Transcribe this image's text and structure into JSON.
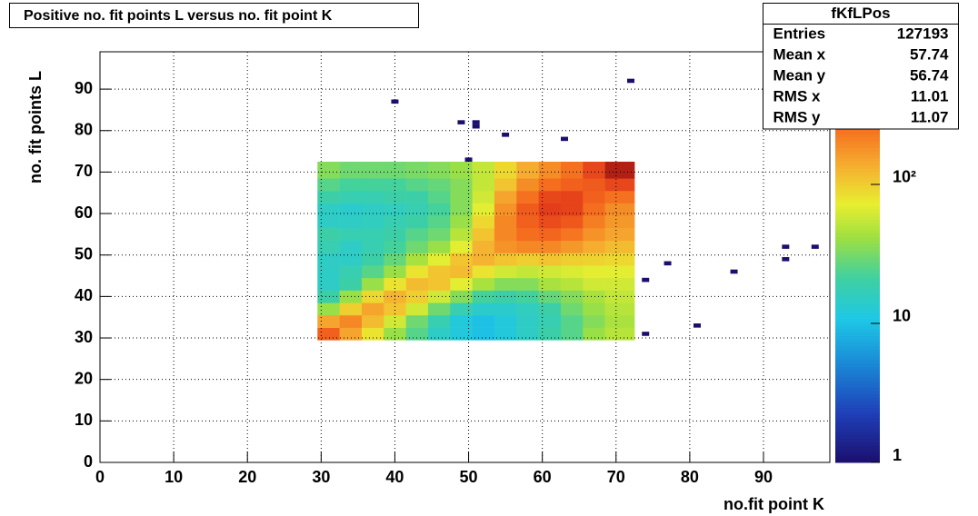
{
  "chart_data": {
    "type": "heatmap",
    "title": "Positive no. fit points L versus no. fit point K",
    "x_label": "no.fit point K",
    "y_label": "no. fit points  L",
    "xlim": [
      0,
      99
    ],
    "ylim": [
      0,
      99
    ],
    "xticks": [
      0,
      10,
      20,
      30,
      40,
      50,
      60,
      70,
      80,
      90
    ],
    "yticks": [
      0,
      10,
      20,
      30,
      40,
      50,
      60,
      70,
      80,
      90
    ],
    "grid": true,
    "log_z": true,
    "zlim": [
      1,
      900
    ],
    "zticks": [
      1,
      10,
      {
        "value": 100,
        "label": "10²"
      }
    ],
    "xbins": [
      29.5,
      32.5,
      35.5,
      38.5,
      41.5,
      44.5,
      47.5,
      50.5,
      53.5,
      56.5,
      59.5,
      62.5,
      65.5,
      68.5,
      72.5
    ],
    "ybins": [
      29.5,
      32.5,
      35.5,
      38.5,
      41.5,
      44.5,
      47.5,
      50.5,
      53.5,
      56.5,
      59.5,
      62.5,
      65.5,
      68.5,
      72.5
    ],
    "values": [
      [
        300,
        150,
        80,
        40,
        25,
        15,
        12,
        10,
        12,
        15,
        20,
        25,
        40,
        50
      ],
      [
        150,
        200,
        120,
        60,
        30,
        18,
        12,
        10,
        12,
        15,
        18,
        25,
        35,
        45
      ],
      [
        40,
        100,
        150,
        110,
        60,
        30,
        18,
        14,
        14,
        16,
        20,
        30,
        40,
        50
      ],
      [
        20,
        40,
        90,
        130,
        100,
        60,
        35,
        22,
        20,
        22,
        28,
        35,
        45,
        55
      ],
      [
        15,
        20,
        40,
        80,
        120,
        110,
        70,
        45,
        35,
        35,
        45,
        50,
        60,
        60
      ],
      [
        15,
        18,
        25,
        40,
        80,
        110,
        120,
        80,
        60,
        55,
        60,
        65,
        70,
        70
      ],
      [
        15,
        15,
        20,
        28,
        45,
        70,
        110,
        130,
        110,
        100,
        110,
        100,
        95,
        90
      ],
      [
        18,
        15,
        18,
        22,
        30,
        40,
        70,
        130,
        180,
        200,
        200,
        170,
        140,
        120
      ],
      [
        20,
        18,
        18,
        20,
        25,
        30,
        50,
        110,
        200,
        260,
        280,
        240,
        180,
        150
      ],
      [
        15,
        15,
        16,
        18,
        20,
        25,
        40,
        90,
        200,
        300,
        380,
        330,
        220,
        170
      ],
      [
        15,
        14,
        15,
        16,
        18,
        22,
        35,
        70,
        180,
        320,
        450,
        420,
        260,
        190
      ],
      [
        20,
        18,
        18,
        20,
        20,
        25,
        35,
        60,
        150,
        250,
        400,
        420,
        300,
        250
      ],
      [
        25,
        22,
        22,
        22,
        25,
        28,
        35,
        55,
        110,
        190,
        260,
        300,
        320,
        400
      ],
      [
        35,
        30,
        30,
        30,
        32,
        35,
        40,
        55,
        90,
        140,
        190,
        250,
        400,
        700
      ]
    ],
    "points": {
      "x": [
        40,
        49,
        51,
        51,
        55,
        63,
        72,
        50,
        74,
        77,
        86,
        93,
        97,
        93,
        81,
        74
      ],
      "y": [
        87,
        82,
        82,
        81,
        79,
        78,
        92,
        73,
        44,
        48,
        46,
        52,
        52,
        49,
        33,
        31
      ],
      "values": [
        1,
        1,
        1,
        1,
        1,
        1,
        1,
        1,
        1,
        1,
        1,
        1,
        1,
        1,
        1,
        1
      ]
    },
    "stats": {
      "title": "fKfLPos",
      "rows": [
        [
          "Entries",
          127193
        ],
        [
          "Mean x",
          57.74
        ],
        [
          "Mean y",
          56.74
        ],
        [
          "RMS x",
          11.01
        ],
        [
          "RMS y",
          11.07
        ]
      ]
    }
  }
}
